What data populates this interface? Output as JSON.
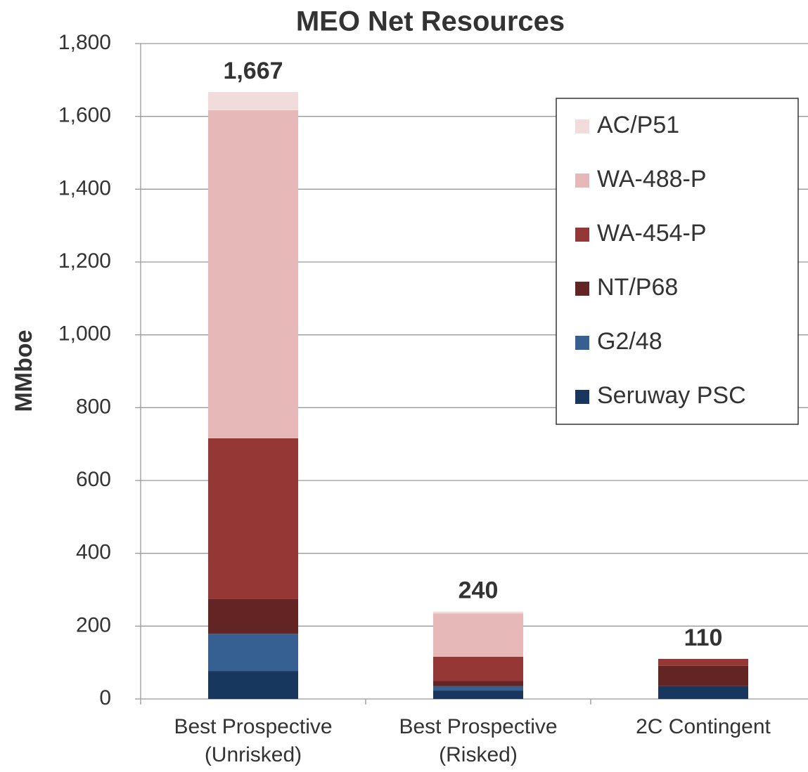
{
  "chart_data": {
    "type": "stacked-bar",
    "title": "MEO Net Resources",
    "y_label": "MMboe",
    "categories": [
      "Best Prospective\n(Unrisked)",
      "Best Prospective\n(Risked)",
      "2C Contingent"
    ],
    "series": [
      {
        "name": "AC/P51",
        "color": "#f2dcdb",
        "values": [
          50,
          5,
          0
        ]
      },
      {
        "name": "WA-488-P",
        "color": "#e6b9b8",
        "values": [
          901,
          119,
          0
        ]
      },
      {
        "name": "WA-454-P",
        "color": "#953735",
        "values": [
          442,
          66,
          19
        ]
      },
      {
        "name": "NT/P68",
        "color": "#632523",
        "values": [
          95,
          15,
          56
        ]
      },
      {
        "name": "G2/48",
        "color": "#376092",
        "values": [
          102,
          12,
          0
        ]
      },
      {
        "name": "Seruway PSC",
        "color": "#17375e",
        "values": [
          77,
          23,
          35
        ]
      }
    ],
    "totals": [
      1667,
      240,
      110
    ],
    "total_labels": [
      "1,667",
      "240",
      "110"
    ],
    "ylim": [
      0,
      1800
    ],
    "yticks": [
      0,
      200,
      400,
      600,
      800,
      {
        "value": 1000,
        "label": "1,000"
      },
      {
        "value": 1200,
        "label": "1,200"
      },
      {
        "value": 1400,
        "label": "1,400"
      },
      {
        "value": 1600,
        "label": "1,600"
      },
      {
        "value": 1800,
        "label": "1,800"
      }
    ],
    "grid": true
  }
}
